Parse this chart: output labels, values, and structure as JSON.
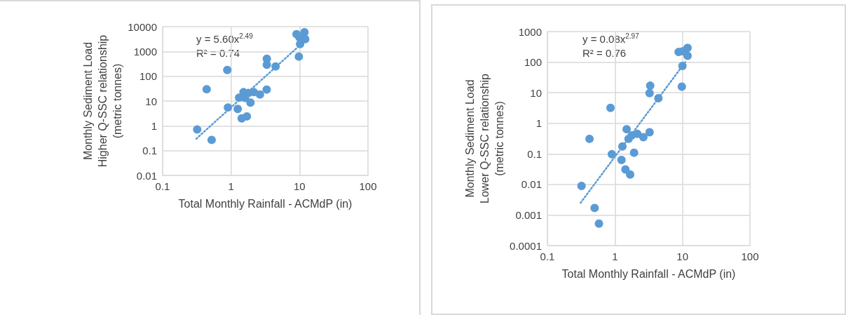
{
  "chart_data": [
    {
      "type": "scatter",
      "xlabel": "Total Monthly Rainfall - ACMdP (in)",
      "ylabel": "Monthly Sediment Load\nHigher Q-SSC relationship\n(metric tonnes)",
      "log": "xy",
      "grid": true,
      "marker": "circle",
      "xlim": [
        0.1,
        100
      ],
      "xticks": [
        0.1,
        1,
        10,
        100
      ],
      "ylim": [
        0.01,
        10000
      ],
      "yticks": [
        0.01,
        0.1,
        1,
        10,
        100,
        1000,
        10000
      ],
      "annotations": [
        "y = 5.60x$^{2.49}$",
        "R² = 0.74"
      ],
      "series": [
        {
          "color": "#5b9bd5",
          "x": [
            0.32,
            0.44,
            0.52,
            0.88,
            0.9,
            1.25,
            1.31,
            1.43,
            1.52,
            1.6,
            1.7,
            1.79,
            1.92,
            2.15,
            2.64,
            3.31,
            3.33,
            3.33,
            4.47,
            9.03,
            9.78,
            10.0,
            10.2,
            11.8,
            12.1
          ],
          "values": [
            0.71,
            30,
            0.27,
            178,
            5.5,
            4.8,
            13.7,
            2.0,
            22.8,
            13.4,
            2.4,
            21,
            8.6,
            22.8,
            18.4,
            29,
            506,
            292,
            249,
            4990,
            620,
            3630,
            1980,
            5940,
            3140
          ]
        },
        {
          "type": "line",
          "color": "#5b9bd5",
          "line_style": "dotted",
          "marker": "none",
          "x": [
            0.31,
            10.5
          ],
          "values": [
            0.3,
            1950
          ]
        }
      ]
    },
    {
      "type": "scatter",
      "xlabel": "Total Monthly Rainfall - ACMdP (in)",
      "ylabel": "Monthly Sediment Load\nLower Q-SSC relationship\n(metric tonnes)",
      "log": "xy",
      "grid": true,
      "marker": "circle",
      "xlim": [
        0.1,
        100
      ],
      "xticks": [
        0.1,
        1,
        10,
        100
      ],
      "ylim": [
        0.0001,
        1000
      ],
      "yticks": [
        0.0001,
        0.001,
        0.01,
        0.1,
        1,
        10,
        100,
        1000
      ],
      "annotations": [
        "y = 0.08x$^{2.97}$",
        "R² = 0.76"
      ],
      "series": [
        {
          "color": "#5b9bd5",
          "x": [
            0.32,
            0.42,
            0.5,
            0.58,
            0.86,
            0.9,
            1.25,
            1.29,
            1.43,
            1.49,
            1.59,
            1.68,
            1.77,
            1.92,
            2.15,
            2.64,
            3.26,
            3.26,
            3.33,
            4.4,
            8.77,
            9.79,
            10.0,
            10.2,
            11.9,
            11.9
          ],
          "values": [
            0.0089,
            0.31,
            0.0017,
            0.00052,
            3.2,
            0.097,
            0.063,
            0.175,
            0.031,
            0.64,
            0.31,
            0.021,
            0.4,
            0.109,
            0.45,
            0.35,
            0.51,
            9.7,
            17,
            6.6,
            215,
            15.8,
            75,
            227,
            293,
            161
          ]
        },
        {
          "type": "line",
          "color": "#5b9bd5",
          "line_style": "dotted",
          "marker": "none",
          "x": [
            0.31,
            11
          ],
          "values": [
            0.0025,
            100
          ]
        }
      ]
    }
  ]
}
